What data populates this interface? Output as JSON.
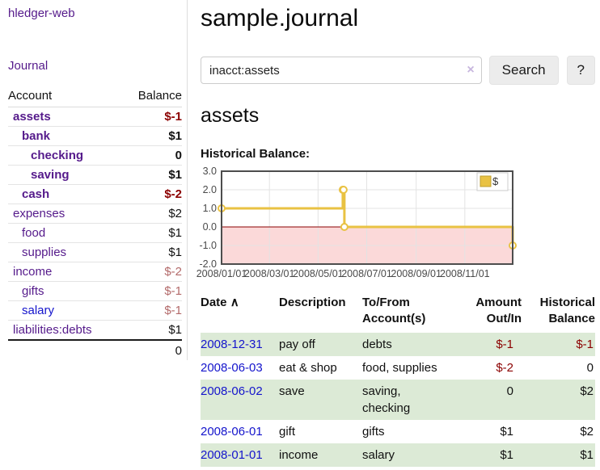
{
  "app": {
    "title": "hledger-web",
    "nav_journal": "Journal"
  },
  "sidebar": {
    "header": {
      "account": "Account",
      "balance": "Balance"
    },
    "accounts": [
      {
        "name": "assets",
        "indent": 1,
        "bold": true,
        "blue": false,
        "balance": "$-1",
        "balance_class": "neg-strong"
      },
      {
        "name": "bank",
        "indent": 2,
        "bold": true,
        "blue": false,
        "balance": "$1",
        "balance_class": "pos"
      },
      {
        "name": "checking",
        "indent": 3,
        "bold": true,
        "blue": false,
        "balance": "0",
        "balance_class": "pos"
      },
      {
        "name": "saving",
        "indent": 3,
        "bold": true,
        "blue": false,
        "balance": "$1",
        "balance_class": "pos"
      },
      {
        "name": "cash",
        "indent": 2,
        "bold": true,
        "blue": false,
        "balance": "$-2",
        "balance_class": "neg-strong"
      },
      {
        "name": "expenses",
        "indent": 1,
        "bold": false,
        "blue": false,
        "balance": "$2",
        "balance_class": "pos"
      },
      {
        "name": "food",
        "indent": 2,
        "bold": false,
        "blue": false,
        "balance": "$1",
        "balance_class": "pos"
      },
      {
        "name": "supplies",
        "indent": 2,
        "bold": false,
        "blue": false,
        "balance": "$1",
        "balance_class": "pos"
      },
      {
        "name": "income",
        "indent": 1,
        "bold": false,
        "blue": false,
        "balance": "$-2",
        "balance_class": "neg-soft"
      },
      {
        "name": "gifts",
        "indent": 2,
        "bold": false,
        "blue": false,
        "balance": "$-1",
        "balance_class": "neg-soft"
      },
      {
        "name": "salary",
        "indent": 2,
        "bold": false,
        "blue": true,
        "balance": "$-1",
        "balance_class": "neg-soft"
      },
      {
        "name": "liabilities:debts",
        "indent": 1,
        "bold": false,
        "blue": false,
        "balance": "$1",
        "balance_class": "pos"
      }
    ],
    "total": "0"
  },
  "main": {
    "title": "sample.journal",
    "search": {
      "value": "inacct:assets",
      "clear_icon": "×",
      "button": "Search",
      "help_button": "?"
    },
    "account_heading": "assets",
    "chart_label": "Historical Balance:"
  },
  "chart_data": {
    "type": "line",
    "step": true,
    "title": "Historical Balance",
    "xlim": [
      "2008-01-01",
      "2008-12-31"
    ],
    "ylim": [
      -2,
      3
    ],
    "x_ticks": [
      "2008/01/01",
      "2008/03/01",
      "2008/05/01",
      "2008/07/01",
      "2008/09/01",
      "2008/11/01"
    ],
    "y_ticks": [
      "3.0",
      "2.0",
      "1.0",
      "0.0",
      "-1.0",
      "-2.0"
    ],
    "series": [
      {
        "name": "$",
        "color": "#e9c243",
        "points": [
          [
            "2008-01-01",
            1
          ],
          [
            "2008-06-01",
            2
          ],
          [
            "2008-06-02",
            2
          ],
          [
            "2008-06-03",
            0
          ],
          [
            "2008-12-31",
            -1
          ]
        ]
      }
    ],
    "legend": {
      "label": "$",
      "position": "top-right"
    },
    "colors": {
      "negative_region": "#fbd9d9",
      "zero_line": "#8b0000",
      "grid": "#e3e3e3",
      "border": "#4d4d4d",
      "tick_text": "#4a4a4a",
      "marker_fill": "#ffffff"
    }
  },
  "register": {
    "headers": {
      "date": "Date",
      "sort_icon": "∧",
      "description": "Description",
      "accounts": "To/From\nAccount(s)",
      "amount": "Amount\nOut/In",
      "balance": "Historical\nBalance"
    },
    "rows": [
      {
        "date": "2008-12-31",
        "description": "pay off",
        "accounts": "debts",
        "amount": "$-1",
        "amount_negative": true,
        "balance": "$-1",
        "balance_negative": true,
        "highlight": true
      },
      {
        "date": "2008-06-03",
        "description": "eat & shop",
        "accounts": "food, supplies",
        "amount": "$-2",
        "amount_negative": true,
        "balance": "0",
        "balance_negative": false,
        "highlight": false
      },
      {
        "date": "2008-06-02",
        "description": "save",
        "accounts": "saving, checking",
        "amount": "0",
        "amount_negative": false,
        "balance": "$2",
        "balance_negative": false,
        "highlight": true
      },
      {
        "date": "2008-06-01",
        "description": "gift",
        "accounts": "gifts",
        "amount": "$1",
        "amount_negative": false,
        "balance": "$2",
        "balance_negative": false,
        "highlight": false
      },
      {
        "date": "2008-01-01",
        "description": "income",
        "accounts": "salary",
        "amount": "$1",
        "amount_negative": false,
        "balance": "$1",
        "balance_negative": false,
        "highlight": true
      }
    ]
  }
}
